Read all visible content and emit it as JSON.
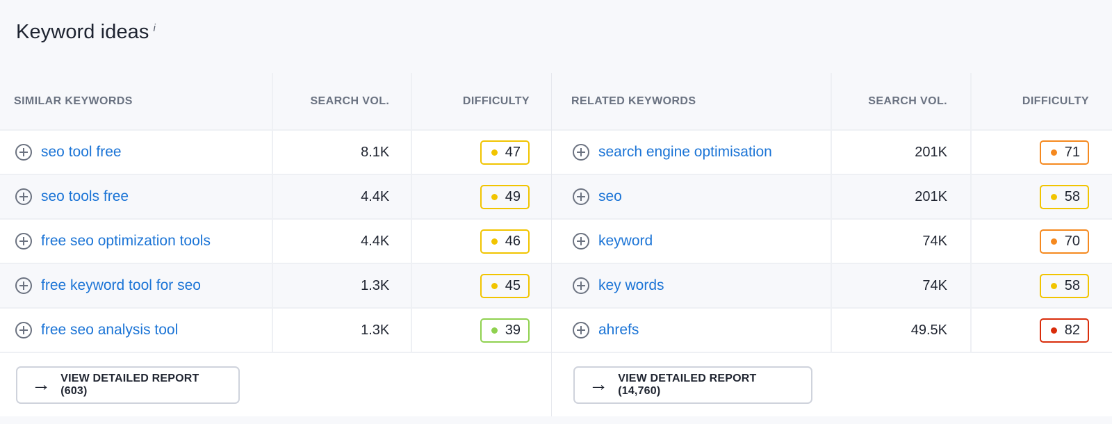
{
  "header": {
    "title": "Keyword ideas",
    "info": "i"
  },
  "similar": {
    "columns": [
      "SIMILAR KEYWORDS",
      "SEARCH VOL.",
      "DIFFICULTY"
    ],
    "rows": [
      {
        "keyword": "seo tool free",
        "volume": "8.1K",
        "difficulty": "47",
        "color": "#f1c400"
      },
      {
        "keyword": "seo tools free",
        "volume": "4.4K",
        "difficulty": "49",
        "color": "#f1c400"
      },
      {
        "keyword": "free seo optimization tools",
        "volume": "4.4K",
        "difficulty": "46",
        "color": "#f1c400"
      },
      {
        "keyword": "free keyword tool for seo",
        "volume": "1.3K",
        "difficulty": "45",
        "color": "#f1c400"
      },
      {
        "keyword": "free seo analysis tool",
        "volume": "1.3K",
        "difficulty": "39",
        "color": "#8fd14f"
      }
    ],
    "report_button": "VIEW DETAILED REPORT (603)"
  },
  "related": {
    "columns": [
      "RELATED KEYWORDS",
      "SEARCH VOL.",
      "DIFFICULTY"
    ],
    "rows": [
      {
        "keyword": "search engine optimisation",
        "volume": "201K",
        "difficulty": "71",
        "color": "#f5891f"
      },
      {
        "keyword": "seo",
        "volume": "201K",
        "difficulty": "58",
        "color": "#f1c400"
      },
      {
        "keyword": "keyword",
        "volume": "74K",
        "difficulty": "70",
        "color": "#f5891f"
      },
      {
        "keyword": "key words",
        "volume": "74K",
        "difficulty": "58",
        "color": "#f1c400"
      },
      {
        "keyword": "ahrefs",
        "volume": "49.5K",
        "difficulty": "82",
        "color": "#d92d0b"
      }
    ],
    "report_button": "VIEW DETAILED REPORT (14,760)"
  },
  "icons": {
    "add": "plus-circle-icon",
    "arrow": "arrow-right-icon",
    "info": "info-icon"
  }
}
